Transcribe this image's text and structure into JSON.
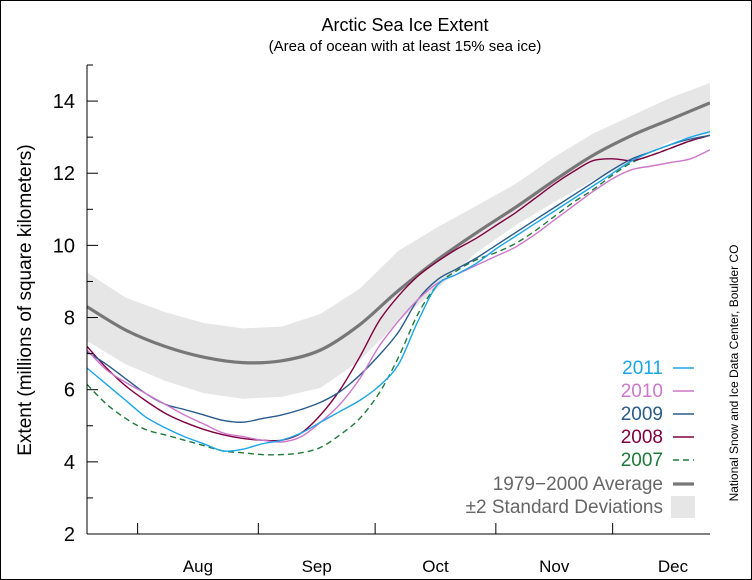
{
  "chart_data": {
    "type": "line",
    "title": "Arctic Sea Ice Extent",
    "subtitle": "(Area of ocean with at least 15% sea ice)",
    "xlabel": "",
    "ylabel": "Extent (millions of square kilometers)",
    "ylim": [
      2,
      15
    ],
    "yticks": [
      2,
      4,
      6,
      8,
      10,
      12,
      14
    ],
    "month_labels": [
      "Aug",
      "Sep",
      "Oct",
      "Nov",
      "Dec"
    ],
    "x_note": "x values are day of year (day 200 to 360)",
    "xlim": [
      200,
      360
    ],
    "month_starts": [
      213,
      244,
      274,
      305,
      335
    ],
    "source_credit": "National Snow and Ice Data Center, Boulder CO",
    "band": {
      "name": "±2 Standard Deviations",
      "color": "#e6e6e6",
      "x": [
        200,
        210,
        220,
        230,
        240,
        250,
        260,
        270,
        280,
        290,
        300,
        310,
        320,
        330,
        340,
        350,
        360
      ],
      "upper": [
        9.25,
        8.55,
        8.15,
        7.85,
        7.7,
        7.75,
        8.1,
        8.8,
        9.85,
        10.5,
        11.1,
        11.7,
        12.45,
        13.1,
        13.6,
        14.1,
        14.5
      ],
      "lower": [
        7.35,
        6.7,
        6.25,
        5.9,
        5.75,
        5.8,
        6.05,
        6.8,
        7.9,
        8.8,
        9.8,
        10.55,
        11.2,
        11.8,
        12.3,
        12.9,
        13.1
      ]
    },
    "average": {
      "name": "1979−2000 Average",
      "color": "#777777",
      "x": [
        200,
        210,
        220,
        230,
        240,
        250,
        260,
        270,
        280,
        290,
        300,
        310,
        320,
        330,
        340,
        350,
        360
      ],
      "values": [
        8.3,
        7.65,
        7.2,
        6.9,
        6.75,
        6.8,
        7.1,
        7.8,
        8.75,
        9.6,
        10.35,
        11.05,
        11.8,
        12.5,
        13.05,
        13.5,
        13.95
      ]
    },
    "series": [
      {
        "name": "2011",
        "color": "#1aa6e8",
        "dash": "",
        "x": [
          200,
          205,
          210,
          215,
          220,
          225,
          230,
          235,
          240,
          245,
          250,
          255,
          260,
          265,
          270,
          275,
          280,
          285,
          290,
          295,
          300,
          305,
          310,
          315,
          320,
          325,
          330,
          335,
          340,
          345,
          350,
          355,
          360
        ],
        "values": [
          6.6,
          6.15,
          5.7,
          5.25,
          4.95,
          4.7,
          4.5,
          4.3,
          4.35,
          4.5,
          4.6,
          4.8,
          5.1,
          5.4,
          5.7,
          6.1,
          6.7,
          7.9,
          8.9,
          9.2,
          9.5,
          9.9,
          10.25,
          10.6,
          10.95,
          11.3,
          11.65,
          12.0,
          12.35,
          12.6,
          12.8,
          13.0,
          13.15
        ]
      },
      {
        "name": "2010",
        "color": "#cc77cc",
        "dash": "",
        "x": [
          200,
          205,
          210,
          215,
          220,
          225,
          230,
          235,
          240,
          245,
          250,
          255,
          260,
          265,
          270,
          275,
          280,
          285,
          290,
          295,
          300,
          305,
          310,
          315,
          320,
          325,
          330,
          335,
          340,
          345,
          350,
          355,
          360
        ],
        "values": [
          7.1,
          6.55,
          6.2,
          5.9,
          5.6,
          5.3,
          5.05,
          4.8,
          4.7,
          4.6,
          4.55,
          4.7,
          5.1,
          5.6,
          6.3,
          7.2,
          7.9,
          8.5,
          8.95,
          9.2,
          9.45,
          9.7,
          9.95,
          10.3,
          10.7,
          11.1,
          11.5,
          11.85,
          12.1,
          12.2,
          12.3,
          12.4,
          12.65
        ]
      },
      {
        "name": "2009",
        "color": "#2a5b8c",
        "dash": "",
        "x": [
          200,
          205,
          210,
          215,
          220,
          225,
          230,
          235,
          240,
          245,
          250,
          255,
          260,
          265,
          270,
          275,
          280,
          285,
          290,
          295,
          300,
          305,
          310,
          315,
          320,
          325,
          330,
          335,
          340,
          345,
          350,
          355,
          360
        ],
        "values": [
          7.05,
          6.7,
          6.3,
          5.9,
          5.6,
          5.45,
          5.3,
          5.15,
          5.1,
          5.2,
          5.3,
          5.45,
          5.65,
          5.95,
          6.4,
          6.95,
          7.6,
          8.5,
          9.05,
          9.35,
          9.65,
          10.0,
          10.35,
          10.7,
          11.05,
          11.4,
          11.75,
          12.1,
          12.4,
          12.6,
          12.8,
          12.95,
          13.05
        ]
      },
      {
        "name": "2008",
        "color": "#800040",
        "dash": "",
        "x": [
          200,
          205,
          210,
          215,
          220,
          225,
          230,
          235,
          240,
          245,
          250,
          255,
          260,
          265,
          270,
          275,
          280,
          285,
          290,
          295,
          300,
          305,
          310,
          315,
          320,
          325,
          330,
          335,
          340,
          345,
          350,
          355,
          360
        ],
        "values": [
          7.2,
          6.6,
          6.1,
          5.7,
          5.35,
          5.1,
          4.9,
          4.75,
          4.65,
          4.6,
          4.6,
          4.8,
          5.3,
          6.0,
          6.9,
          7.9,
          8.6,
          9.15,
          9.55,
          9.9,
          10.2,
          10.55,
          10.9,
          11.3,
          11.7,
          12.05,
          12.35,
          12.4,
          12.35,
          12.5,
          12.7,
          12.9,
          13.05
        ]
      },
      {
        "name": "2007",
        "color": "#1e7a3a",
        "dash": "6,4",
        "x": [
          200,
          205,
          210,
          215,
          220,
          225,
          230,
          235,
          240,
          245,
          250,
          255,
          260,
          265,
          270,
          275,
          280,
          285,
          290,
          295,
          300,
          305,
          310,
          315,
          320,
          325,
          330,
          335,
          340,
          345,
          350,
          355,
          360
        ],
        "values": [
          6.15,
          5.6,
          5.2,
          4.9,
          4.75,
          4.6,
          4.45,
          4.3,
          4.25,
          4.2,
          4.2,
          4.25,
          4.4,
          4.75,
          5.2,
          5.9,
          6.9,
          8.1,
          8.9,
          9.3,
          9.6,
          9.8,
          10.05,
          10.4,
          10.8,
          11.2,
          11.55,
          11.95,
          12.3,
          12.5,
          12.7,
          12.9,
          13.05
        ]
      }
    ],
    "legend": {
      "placement": "bottom-right",
      "entries": [
        "2011",
        "2010",
        "2009",
        "2008",
        "2007",
        "1979−2000 Average",
        "±2 Standard Deviations"
      ]
    }
  }
}
